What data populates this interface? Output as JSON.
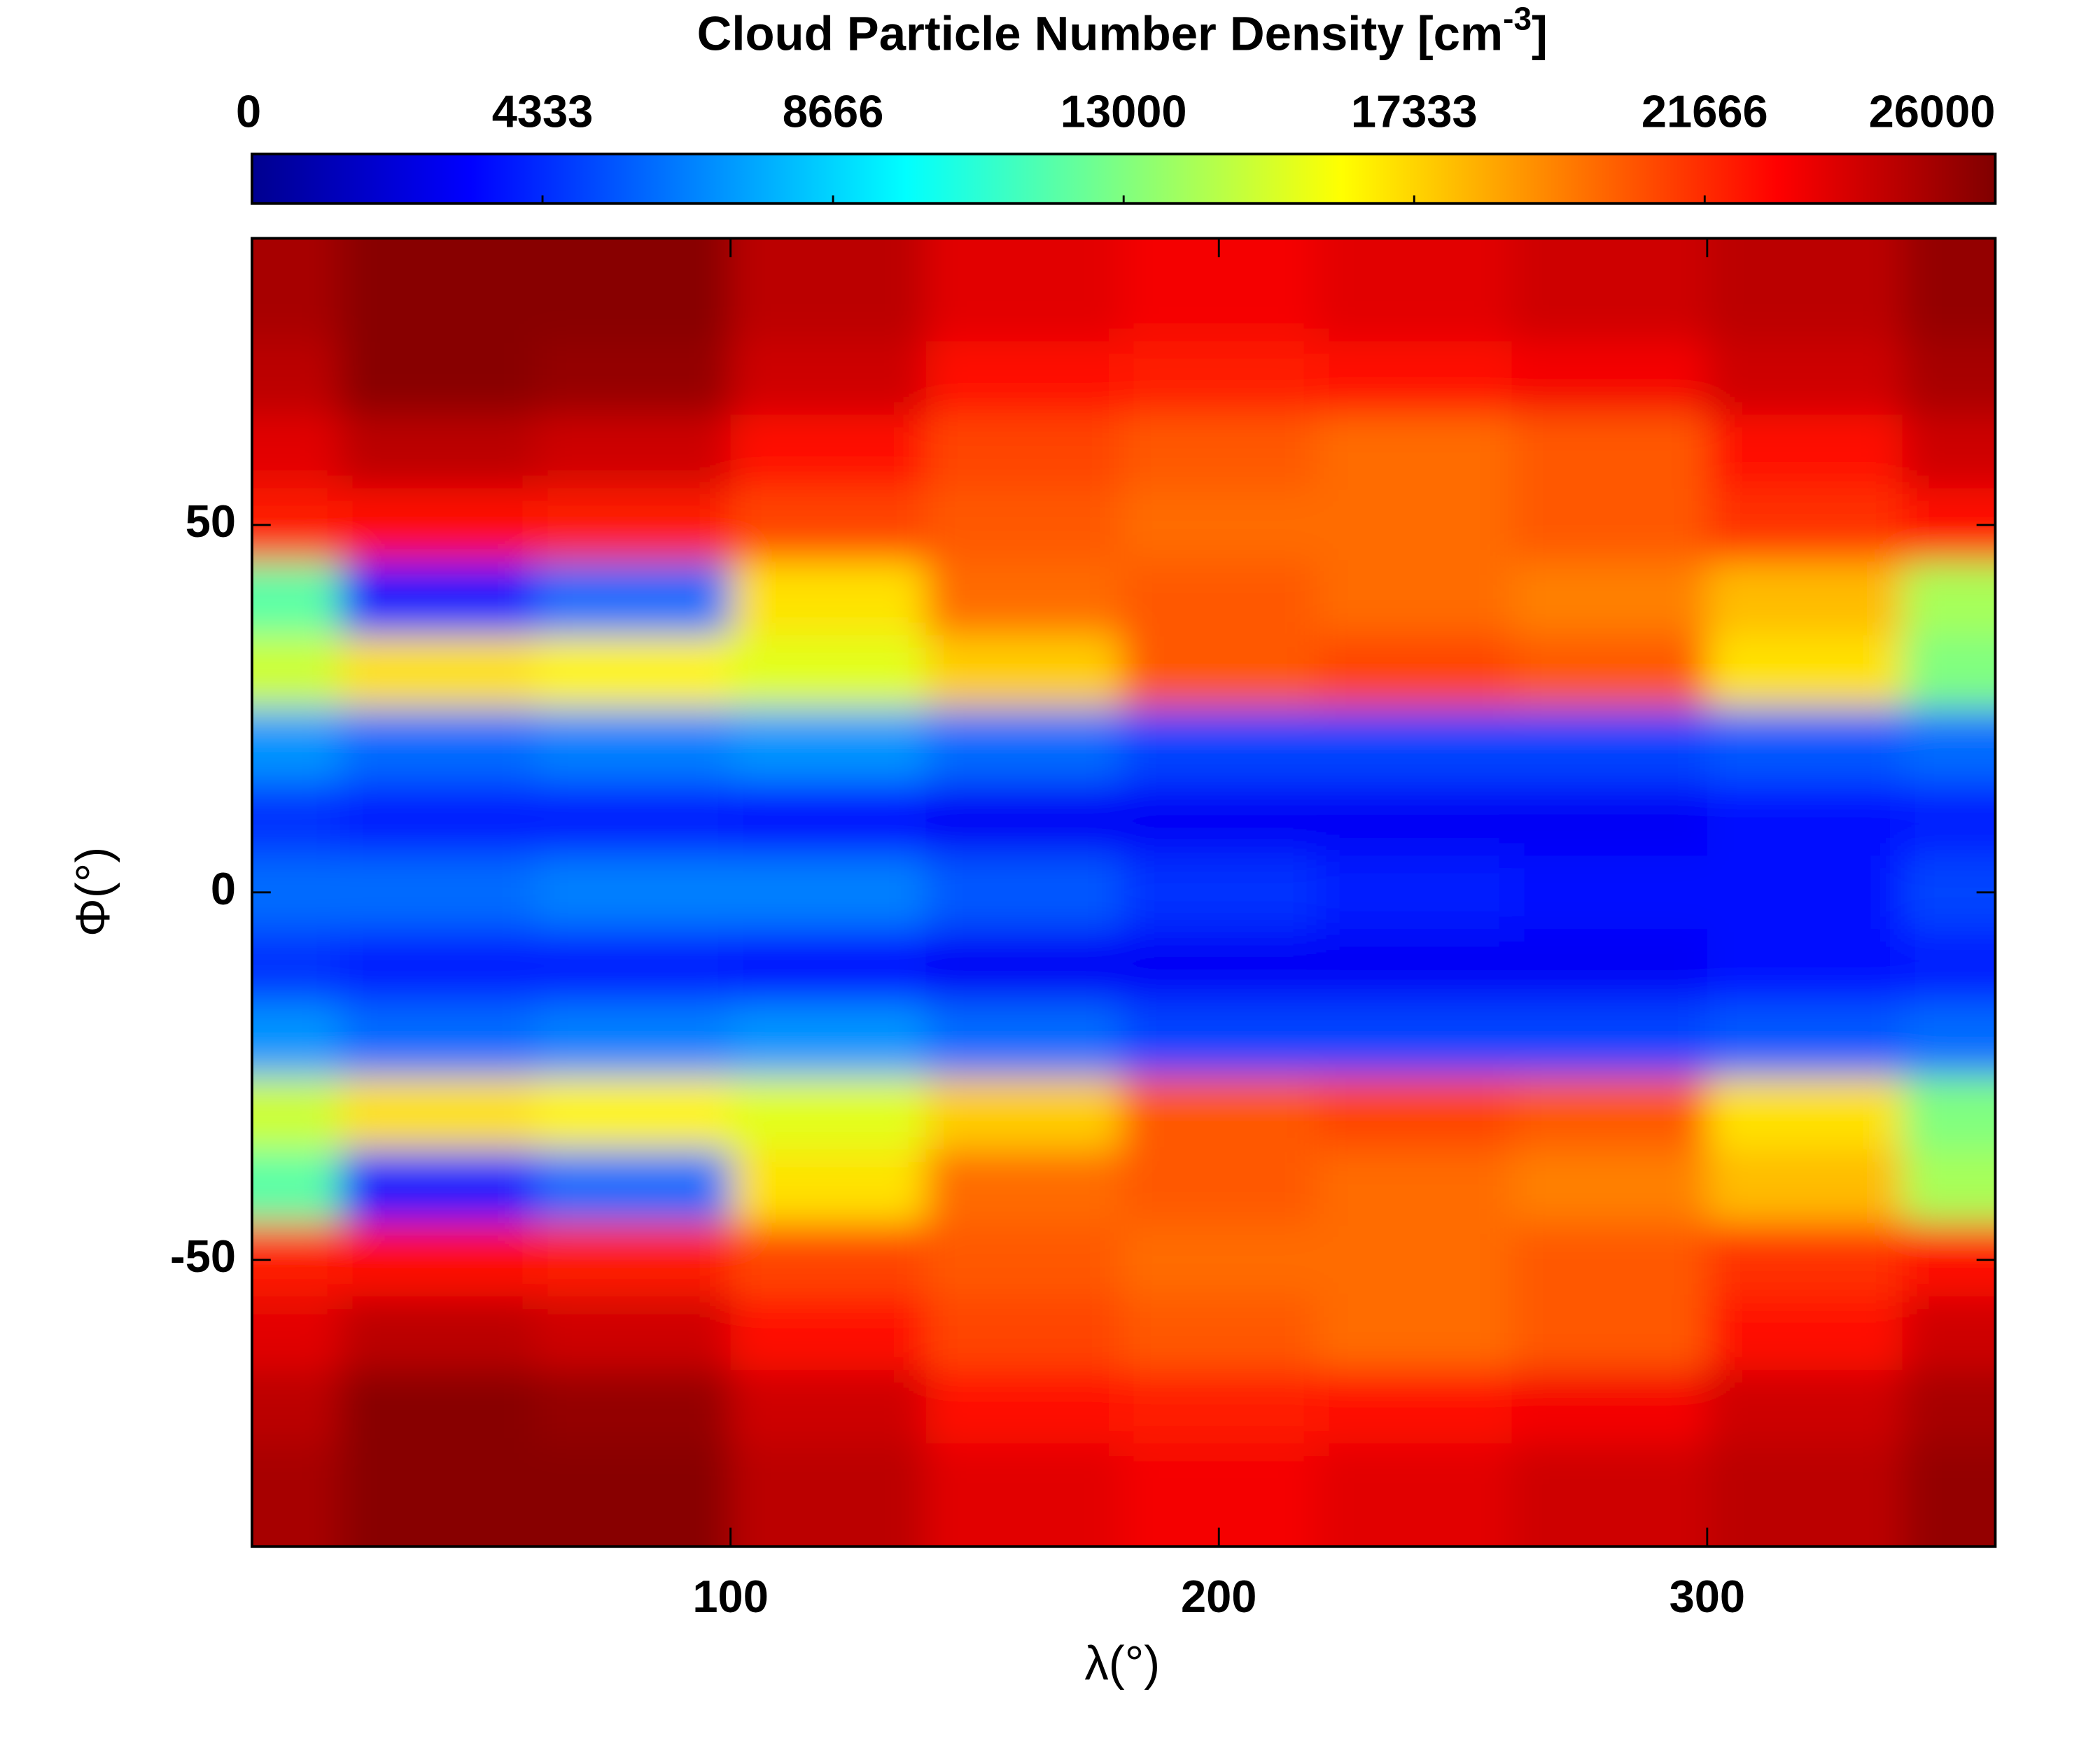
{
  "chart_data": {
    "type": "contour",
    "title": "Cloud Particle Number Density [cm",
    "title_superscript": "-3",
    "title_end": "]",
    "xlabel": "λ(°)",
    "ylabel": "Φ(°)",
    "x": [
      0,
      40,
      80,
      120,
      160,
      200,
      240,
      280,
      320,
      360
    ],
    "y": [
      80,
      70,
      60,
      50,
      40,
      30,
      20,
      10,
      0,
      -10,
      -20,
      -30,
      -40,
      -50,
      -60,
      -70,
      -80
    ],
    "z": [
      [
        25000,
        25800,
        25800,
        24500,
        23500,
        23000,
        23500,
        24000,
        24500,
        25500
      ],
      [
        24500,
        25800,
        25500,
        24000,
        22500,
        22000,
        22500,
        23000,
        24000,
        25000
      ],
      [
        23500,
        24500,
        24000,
        22500,
        21000,
        20500,
        20000,
        20500,
        22500,
        24000
      ],
      [
        22000,
        22500,
        22000,
        21000,
        20500,
        20000,
        20000,
        20500,
        21500,
        22500
      ],
      [
        12000,
        4000,
        6000,
        17000,
        20000,
        20500,
        20000,
        19500,
        18000,
        14000
      ],
      [
        15000,
        17000,
        16500,
        15500,
        17500,
        20500,
        21000,
        20500,
        17000,
        13000
      ],
      [
        7000,
        6000,
        6500,
        7000,
        6000,
        5000,
        5000,
        5000,
        5500,
        6000
      ],
      [
        4500,
        4000,
        4000,
        3500,
        3000,
        3000,
        3000,
        3000,
        3500,
        4000
      ],
      [
        6000,
        6000,
        6500,
        6500,
        5500,
        4500,
        4000,
        3500,
        3500,
        5000
      ],
      [
        4500,
        4000,
        4000,
        3500,
        3000,
        3000,
        3000,
        3000,
        3500,
        4000
      ],
      [
        7000,
        6000,
        6500,
        7000,
        6000,
        5000,
        5000,
        5000,
        5500,
        6000
      ],
      [
        15000,
        17000,
        16500,
        15500,
        17500,
        20500,
        21000,
        20500,
        17000,
        13000
      ],
      [
        12000,
        4000,
        6000,
        17000,
        20000,
        20500,
        20000,
        19500,
        18000,
        14000
      ],
      [
        22000,
        22500,
        22000,
        21000,
        20500,
        20000,
        20000,
        20500,
        21500,
        22500
      ],
      [
        23500,
        24500,
        24000,
        22500,
        21000,
        20500,
        20000,
        20500,
        22500,
        24000
      ],
      [
        24500,
        25800,
        25500,
        24000,
        22500,
        22000,
        22500,
        23000,
        24000,
        25000
      ],
      [
        25000,
        25800,
        25800,
        24500,
        23500,
        23000,
        23500,
        24000,
        24500,
        25500
      ]
    ],
    "xlim": [
      2,
      359
    ],
    "ylim": [
      -89,
      89
    ],
    "xticks": [
      100,
      200,
      300
    ],
    "yticks": [
      -50,
      0,
      50
    ],
    "clim": [
      0,
      26000
    ],
    "cticks": [
      0,
      4333,
      8666,
      13000,
      17333,
      21666,
      26000
    ],
    "colormap": [
      "#00008f",
      "#0000ff",
      "#0080ff",
      "#00ffff",
      "#80ff80",
      "#ffff00",
      "#ff8000",
      "#ff0000",
      "#800000"
    ]
  }
}
